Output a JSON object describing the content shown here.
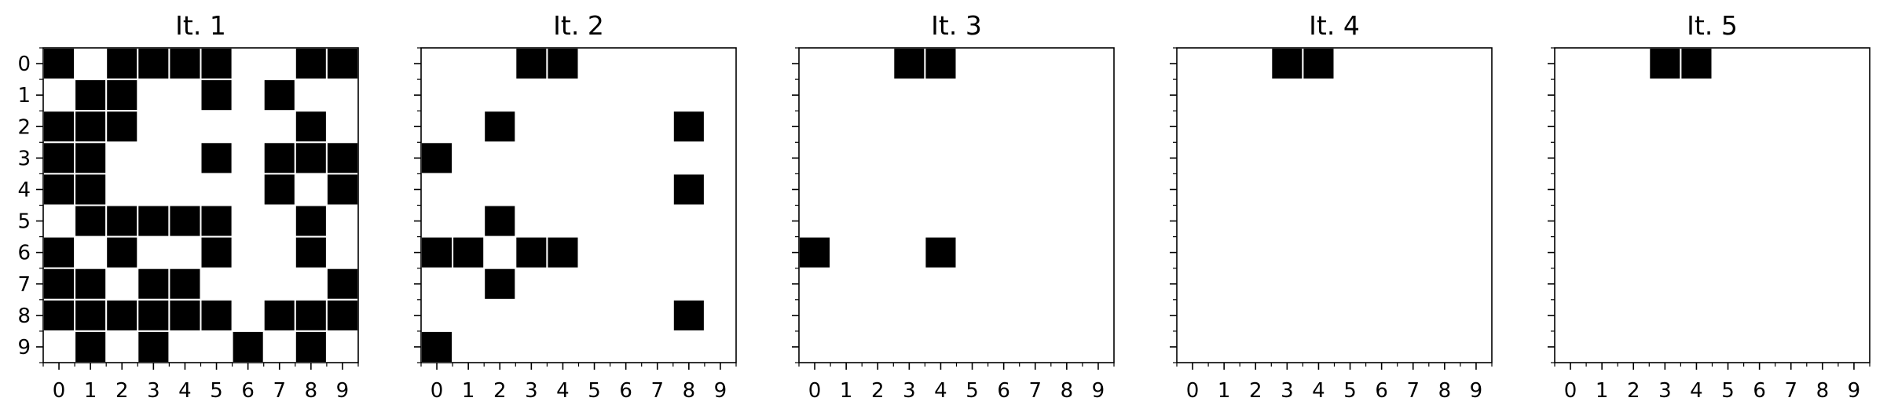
{
  "chart_data": [
    {
      "type": "heatmap",
      "title": "It. 1",
      "x_ticks": [
        "0",
        "1",
        "2",
        "3",
        "4",
        "5",
        "6",
        "7",
        "8",
        "9"
      ],
      "y_ticks": [
        "0",
        "1",
        "2",
        "3",
        "4",
        "5",
        "6",
        "7",
        "8",
        "9"
      ],
      "show_y_labels": true,
      "grid": [
        [
          1,
          0,
          1,
          1,
          1,
          1,
          0,
          0,
          1,
          1
        ],
        [
          0,
          1,
          1,
          0,
          0,
          1,
          0,
          1,
          0,
          0
        ],
        [
          1,
          1,
          1,
          0,
          0,
          0,
          0,
          0,
          1,
          0
        ],
        [
          1,
          1,
          0,
          0,
          0,
          1,
          0,
          1,
          1,
          1
        ],
        [
          1,
          1,
          0,
          0,
          0,
          0,
          0,
          1,
          0,
          1
        ],
        [
          0,
          1,
          1,
          1,
          1,
          1,
          0,
          0,
          1,
          0
        ],
        [
          1,
          0,
          1,
          0,
          0,
          1,
          0,
          0,
          1,
          0
        ],
        [
          1,
          1,
          0,
          1,
          1,
          0,
          0,
          0,
          0,
          1
        ],
        [
          1,
          1,
          1,
          1,
          1,
          1,
          0,
          1,
          1,
          1
        ],
        [
          0,
          1,
          0,
          1,
          0,
          0,
          1,
          0,
          1,
          0
        ]
      ]
    },
    {
      "type": "heatmap",
      "title": "It. 2",
      "x_ticks": [
        "0",
        "1",
        "2",
        "3",
        "4",
        "5",
        "6",
        "7",
        "8",
        "9"
      ],
      "y_ticks": [
        "0",
        "1",
        "2",
        "3",
        "4",
        "5",
        "6",
        "7",
        "8",
        "9"
      ],
      "show_y_labels": false,
      "grid": [
        [
          0,
          0,
          0,
          1,
          1,
          0,
          0,
          0,
          0,
          0
        ],
        [
          0,
          0,
          0,
          0,
          0,
          0,
          0,
          0,
          0,
          0
        ],
        [
          0,
          0,
          1,
          0,
          0,
          0,
          0,
          0,
          1,
          0
        ],
        [
          1,
          0,
          0,
          0,
          0,
          0,
          0,
          0,
          0,
          0
        ],
        [
          0,
          0,
          0,
          0,
          0,
          0,
          0,
          0,
          1,
          0
        ],
        [
          0,
          0,
          1,
          0,
          0,
          0,
          0,
          0,
          0,
          0
        ],
        [
          1,
          1,
          0,
          1,
          1,
          0,
          0,
          0,
          0,
          0
        ],
        [
          0,
          0,
          1,
          0,
          0,
          0,
          0,
          0,
          0,
          0
        ],
        [
          0,
          0,
          0,
          0,
          0,
          0,
          0,
          0,
          1,
          0
        ],
        [
          1,
          0,
          0,
          0,
          0,
          0,
          0,
          0,
          0,
          0
        ]
      ]
    },
    {
      "type": "heatmap",
      "title": "It. 3",
      "x_ticks": [
        "0",
        "1",
        "2",
        "3",
        "4",
        "5",
        "6",
        "7",
        "8",
        "9"
      ],
      "y_ticks": [
        "0",
        "1",
        "2",
        "3",
        "4",
        "5",
        "6",
        "7",
        "8",
        "9"
      ],
      "show_y_labels": false,
      "grid": [
        [
          0,
          0,
          0,
          1,
          1,
          0,
          0,
          0,
          0,
          0
        ],
        [
          0,
          0,
          0,
          0,
          0,
          0,
          0,
          0,
          0,
          0
        ],
        [
          0,
          0,
          0,
          0,
          0,
          0,
          0,
          0,
          0,
          0
        ],
        [
          0,
          0,
          0,
          0,
          0,
          0,
          0,
          0,
          0,
          0
        ],
        [
          0,
          0,
          0,
          0,
          0,
          0,
          0,
          0,
          0,
          0
        ],
        [
          0,
          0,
          0,
          0,
          0,
          0,
          0,
          0,
          0,
          0
        ],
        [
          1,
          0,
          0,
          0,
          1,
          0,
          0,
          0,
          0,
          0
        ],
        [
          0,
          0,
          0,
          0,
          0,
          0,
          0,
          0,
          0,
          0
        ],
        [
          0,
          0,
          0,
          0,
          0,
          0,
          0,
          0,
          0,
          0
        ],
        [
          0,
          0,
          0,
          0,
          0,
          0,
          0,
          0,
          0,
          0
        ]
      ]
    },
    {
      "type": "heatmap",
      "title": "It. 4",
      "x_ticks": [
        "0",
        "1",
        "2",
        "3",
        "4",
        "5",
        "6",
        "7",
        "8",
        "9"
      ],
      "y_ticks": [
        "0",
        "1",
        "2",
        "3",
        "4",
        "5",
        "6",
        "7",
        "8",
        "9"
      ],
      "show_y_labels": false,
      "grid": [
        [
          0,
          0,
          0,
          1,
          1,
          0,
          0,
          0,
          0,
          0
        ],
        [
          0,
          0,
          0,
          0,
          0,
          0,
          0,
          0,
          0,
          0
        ],
        [
          0,
          0,
          0,
          0,
          0,
          0,
          0,
          0,
          0,
          0
        ],
        [
          0,
          0,
          0,
          0,
          0,
          0,
          0,
          0,
          0,
          0
        ],
        [
          0,
          0,
          0,
          0,
          0,
          0,
          0,
          0,
          0,
          0
        ],
        [
          0,
          0,
          0,
          0,
          0,
          0,
          0,
          0,
          0,
          0
        ],
        [
          0,
          0,
          0,
          0,
          0,
          0,
          0,
          0,
          0,
          0
        ],
        [
          0,
          0,
          0,
          0,
          0,
          0,
          0,
          0,
          0,
          0
        ],
        [
          0,
          0,
          0,
          0,
          0,
          0,
          0,
          0,
          0,
          0
        ],
        [
          0,
          0,
          0,
          0,
          0,
          0,
          0,
          0,
          0,
          0
        ]
      ]
    },
    {
      "type": "heatmap",
      "title": "It. 5",
      "x_ticks": [
        "0",
        "1",
        "2",
        "3",
        "4",
        "5",
        "6",
        "7",
        "8",
        "9"
      ],
      "y_ticks": [
        "0",
        "1",
        "2",
        "3",
        "4",
        "5",
        "6",
        "7",
        "8",
        "9"
      ],
      "show_y_labels": false,
      "grid": [
        [
          0,
          0,
          0,
          1,
          1,
          0,
          0,
          0,
          0,
          0
        ],
        [
          0,
          0,
          0,
          0,
          0,
          0,
          0,
          0,
          0,
          0
        ],
        [
          0,
          0,
          0,
          0,
          0,
          0,
          0,
          0,
          0,
          0
        ],
        [
          0,
          0,
          0,
          0,
          0,
          0,
          0,
          0,
          0,
          0
        ],
        [
          0,
          0,
          0,
          0,
          0,
          0,
          0,
          0,
          0,
          0
        ],
        [
          0,
          0,
          0,
          0,
          0,
          0,
          0,
          0,
          0,
          0
        ],
        [
          0,
          0,
          0,
          0,
          0,
          0,
          0,
          0,
          0,
          0
        ],
        [
          0,
          0,
          0,
          0,
          0,
          0,
          0,
          0,
          0,
          0
        ],
        [
          0,
          0,
          0,
          0,
          0,
          0,
          0,
          0,
          0,
          0
        ],
        [
          0,
          0,
          0,
          0,
          0,
          0,
          0,
          0,
          0,
          0
        ]
      ]
    }
  ],
  "colors": {
    "filled": "#000000",
    "empty": "#ffffff",
    "cell_border": "#ffffff",
    "frame": "#000000"
  }
}
